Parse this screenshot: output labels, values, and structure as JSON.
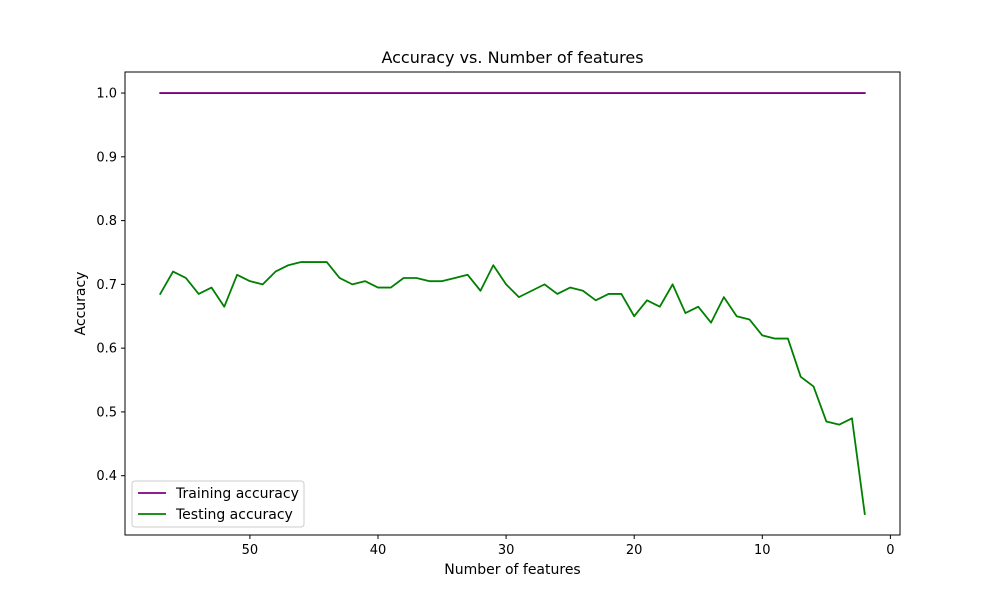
{
  "chart_data": {
    "type": "line",
    "title": "Accuracy vs. Number of features",
    "xlabel": "Number of features",
    "ylabel": "Accuracy",
    "xlim": [
      59.75,
      -0.75
    ],
    "ylim": [
      0.307,
      1.033
    ],
    "x_inverted": true,
    "xticks": [
      50,
      40,
      30,
      20,
      10,
      0
    ],
    "yticks": [
      0.4,
      0.5,
      0.6,
      0.7,
      0.8,
      0.9,
      1.0
    ],
    "xtick_labels": [
      "50",
      "40",
      "30",
      "20",
      "10",
      "0"
    ],
    "ytick_labels": [
      "0.4",
      "0.5",
      "0.6",
      "0.7",
      "0.8",
      "0.9",
      "1.0"
    ],
    "grid": false,
    "legend_position": "lower-left",
    "x": [
      57,
      56,
      55,
      54,
      53,
      52,
      51,
      50,
      49,
      48,
      47,
      46,
      45,
      44,
      43,
      42,
      41,
      40,
      39,
      38,
      37,
      36,
      35,
      34,
      33,
      32,
      31,
      30,
      29,
      28,
      27,
      26,
      25,
      24,
      23,
      22,
      21,
      20,
      19,
      18,
      17,
      16,
      15,
      14,
      13,
      12,
      11,
      10,
      9,
      8,
      7,
      6,
      5,
      4,
      3,
      2
    ],
    "series": [
      {
        "name": "Training accuracy",
        "color": "#800080",
        "values": [
          1,
          1,
          1,
          1,
          1,
          1,
          1,
          1,
          1,
          1,
          1,
          1,
          1,
          1,
          1,
          1,
          1,
          1,
          1,
          1,
          1,
          1,
          1,
          1,
          1,
          1,
          1,
          1,
          1,
          1,
          1,
          1,
          1,
          1,
          1,
          1,
          1,
          1,
          1,
          1,
          1,
          1,
          1,
          1,
          1,
          1,
          1,
          1,
          1,
          1,
          1,
          1,
          1,
          1,
          1,
          1
        ]
      },
      {
        "name": "Testing accuracy",
        "color": "#008000",
        "values": [
          0.685,
          0.72,
          0.71,
          0.685,
          0.695,
          0.665,
          0.715,
          0.705,
          0.7,
          0.72,
          0.73,
          0.735,
          0.735,
          0.735,
          0.71,
          0.7,
          0.705,
          0.695,
          0.695,
          0.71,
          0.71,
          0.705,
          0.705,
          0.71,
          0.715,
          0.69,
          0.73,
          0.7,
          0.68,
          0.69,
          0.7,
          0.685,
          0.695,
          0.69,
          0.675,
          0.685,
          0.685,
          0.65,
          0.675,
          0.665,
          0.7,
          0.655,
          0.665,
          0.64,
          0.68,
          0.65,
          0.645,
          0.62,
          0.615,
          0.615,
          0.555,
          0.54,
          0.485,
          0.48,
          0.49,
          0.34
        ]
      }
    ]
  }
}
